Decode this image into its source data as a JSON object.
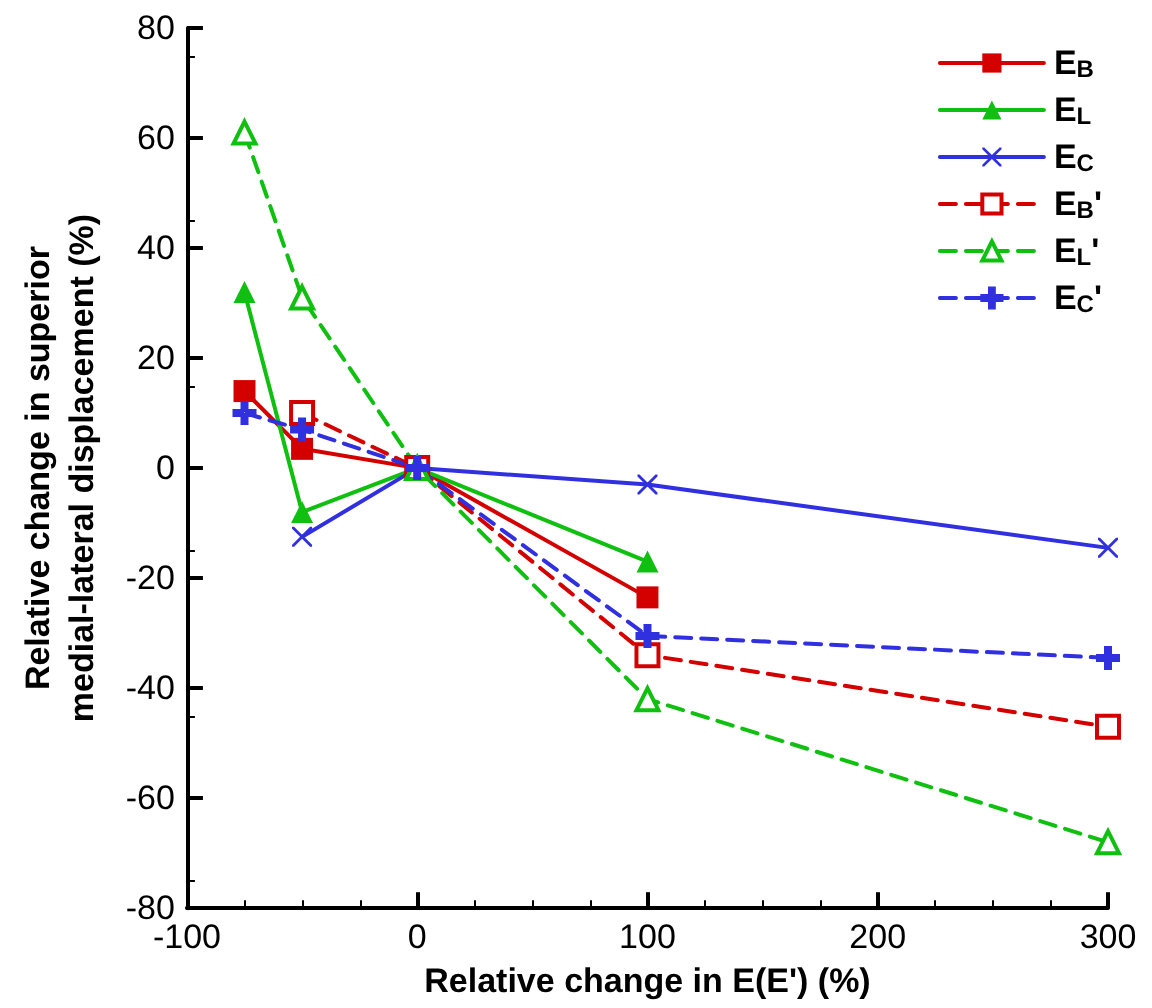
{
  "chart_data": {
    "type": "line",
    "xlabel": "Relative change in E(E') (%)",
    "ylabel": "Relative change in superior\nmedial-lateral displacement (%)",
    "xlim": [
      -100,
      300
    ],
    "xticks": [
      -100,
      0,
      100,
      200,
      300
    ],
    "ylim": [
      -80,
      80
    ],
    "yticks": [
      -80,
      -60,
      -40,
      -20,
      0,
      20,
      40,
      60,
      80
    ],
    "grid": false,
    "legend": "top right",
    "series": [
      {
        "name": "E$_{B}$",
        "color": "#d40000",
        "marker": "square",
        "line_style": "solid",
        "x": [
          -75,
          -50,
          0,
          100
        ],
        "values": [
          14,
          3.5,
          0,
          -23.5
        ]
      },
      {
        "name": "E$_{L}$",
        "color": "#10c010",
        "marker": "triangle",
        "line_style": "solid",
        "x": [
          -75,
          -50,
          0,
          100
        ],
        "values": [
          32,
          -8,
          0,
          -17
        ]
      },
      {
        "name": "E$_{C}$",
        "color": "#3030e0",
        "marker": "cross",
        "line_style": "solid",
        "x": [
          -50,
          0,
          100,
          300
        ],
        "values": [
          -12.5,
          0,
          -3,
          -14.5
        ]
      },
      {
        "name": "E$_{B}$'",
        "color": "#d40000",
        "marker": "square",
        "line_style": "dashed",
        "x": [
          -50,
          0,
          100,
          300
        ],
        "values": [
          10,
          0,
          -34,
          -47
        ]
      },
      {
        "name": "E$_{L}$'",
        "color": "#10c010",
        "marker": "triangle",
        "line_style": "dashed",
        "x": [
          -75,
          -50,
          0,
          100,
          300
        ],
        "values": [
          61,
          31,
          0,
          -42,
          -68
        ]
      },
      {
        "name": "E$_{C}$'",
        "color": "#3030e0",
        "marker": "plus",
        "line_style": "dashed",
        "x": [
          -75,
          -50,
          0,
          100,
          300
        ],
        "values": [
          10,
          7,
          0,
          -30.5,
          -34.5
        ]
      }
    ]
  }
}
